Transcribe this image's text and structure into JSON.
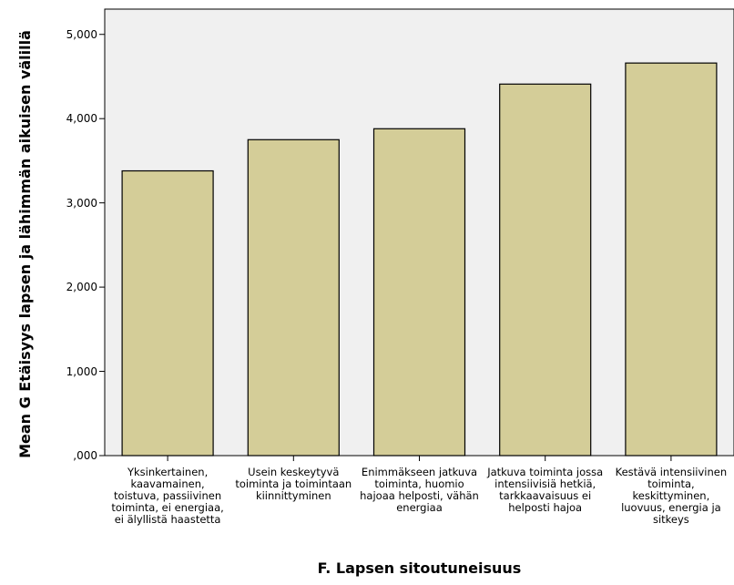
{
  "chart_data": {
    "type": "bar",
    "title": "",
    "xlabel": "F. Lapsen sitoutuneisuus",
    "ylabel": "Mean G Etäisyys lapsen ja lähimmän aikuisen välillä",
    "ylim": [
      0,
      5.3
    ],
    "yticks": [
      {
        "value": 0,
        "label": ",000"
      },
      {
        "value": 1,
        "label": "1,000"
      },
      {
        "value": 2,
        "label": "2,000"
      },
      {
        "value": 3,
        "label": "3,000"
      },
      {
        "value": 4,
        "label": "4,000"
      },
      {
        "value": 5,
        "label": "5,000"
      }
    ],
    "categories": [
      "Yksinkertainen, kaavamainen, toistuva, passiivinen toiminta, ei energiaa, ei älyllistä haastetta",
      "Usein keskeytyvä toiminta ja toimintaan kiinnittyminen",
      "Enimmäkseen jatkuva toiminta, huomio hajoaa helposti, vähän energiaa",
      "Jatkuva toiminta jossa intensiivisiä hetkiä, tarkkaavaisuus ei helposti hajoa",
      "Kestävä intensiivinen toiminta, keskittyminen, luovuus, energia ja sitkeys"
    ],
    "values": [
      3.38,
      3.75,
      3.88,
      4.41,
      4.66
    ],
    "grid": false,
    "colors": {
      "bar_fill": "#d4cd98",
      "bar_stroke": "#000000",
      "plot_background": "#f0f0f0"
    }
  }
}
